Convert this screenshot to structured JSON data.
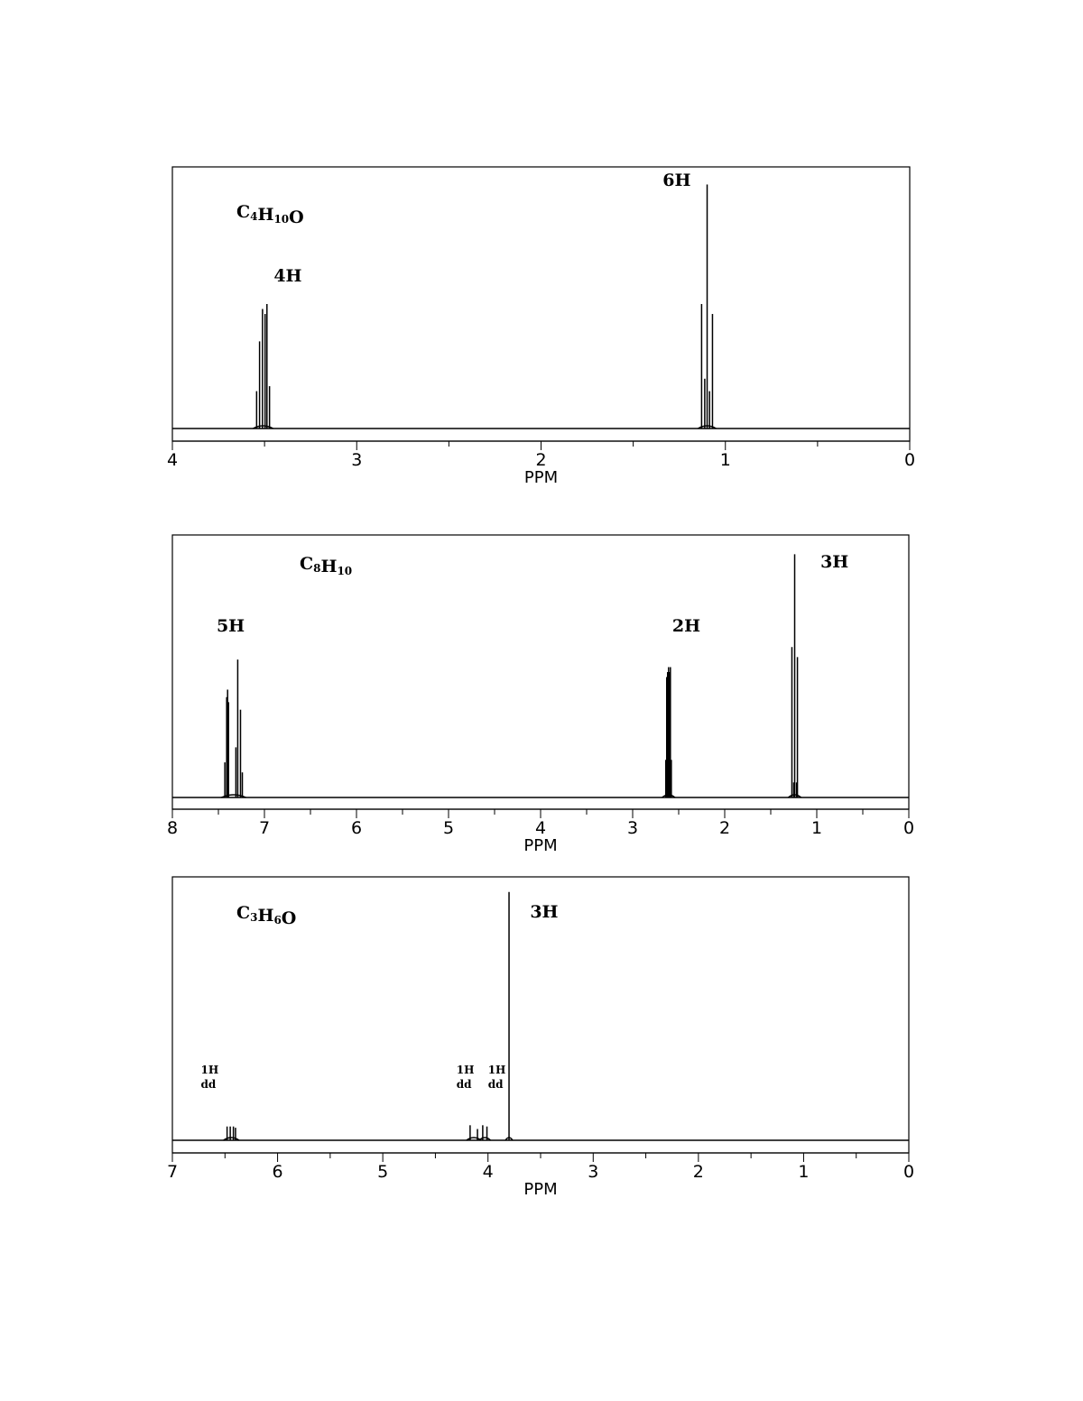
{
  "chart_data": [
    {
      "type": "line",
      "spectrum": "1H NMR",
      "formula": {
        "parts": [
          {
            "t": "C",
            "s": "4"
          },
          {
            "t": "H",
            "s": "10"
          },
          {
            "t": "O",
            "s": ""
          }
        ]
      },
      "xlabel": "PPM",
      "xlim": [
        4,
        0
      ],
      "ticks_major": [
        4,
        3,
        2,
        1,
        0
      ],
      "tick_labels": [
        "4",
        "3",
        "2",
        "1",
        "0"
      ],
      "signals": [
        {
          "center_ppm": 3.5,
          "integration": "4H",
          "multiplicity": "quartet",
          "lines": [
            {
              "ppm": 3.543,
              "h": 0.15
            },
            {
              "ppm": 3.527,
              "h": 0.35
            },
            {
              "ppm": 3.511,
              "h": 0.48
            },
            {
              "ppm": 3.497,
              "h": 0.46
            },
            {
              "ppm": 3.487,
              "h": 0.5
            },
            {
              "ppm": 3.473,
              "h": 0.17
            }
          ]
        },
        {
          "center_ppm": 1.1,
          "integration": "6H",
          "multiplicity": "triplet",
          "lines": [
            {
              "ppm": 1.129,
              "h": 0.5
            },
            {
              "ppm": 1.112,
              "h": 0.2
            },
            {
              "ppm": 1.099,
              "h": 0.98
            },
            {
              "ppm": 1.086,
              "h": 0.15
            },
            {
              "ppm": 1.07,
              "h": 0.46
            }
          ]
        }
      ],
      "annotations": [
        {
          "text": "4H",
          "near_ppm": 3.45
        },
        {
          "text": "6H",
          "near_ppm": 1.34
        }
      ]
    },
    {
      "type": "line",
      "spectrum": "1H NMR",
      "formula": {
        "parts": [
          {
            "t": "C",
            "s": "8"
          },
          {
            "t": "H",
            "s": "10"
          }
        ]
      },
      "xlabel": "PPM",
      "xlim": [
        8,
        0
      ],
      "ticks_major": [
        8,
        7,
        6,
        5,
        4,
        3,
        2,
        1,
        0
      ],
      "tick_labels": [
        "8",
        "7",
        "6",
        "5",
        "4",
        "3",
        "2",
        "1",
        "0"
      ],
      "signals": [
        {
          "center_ppm": 7.3,
          "integration": "5H",
          "multiplicity": "multiplet",
          "lines": [
            {
              "ppm": 7.43,
              "h": 0.14
            },
            {
              "ppm": 7.41,
              "h": 0.4
            },
            {
              "ppm": 7.4,
              "h": 0.43
            },
            {
              "ppm": 7.39,
              "h": 0.38
            },
            {
              "ppm": 7.31,
              "h": 0.2
            },
            {
              "ppm": 7.29,
              "h": 0.55
            },
            {
              "ppm": 7.26,
              "h": 0.35
            },
            {
              "ppm": 7.24,
              "h": 0.1
            }
          ]
        },
        {
          "center_ppm": 2.6,
          "integration": "2H",
          "multiplicity": "quartet",
          "lines": [
            {
              "ppm": 2.64,
              "h": 0.15
            },
            {
              "ppm": 2.63,
              "h": 0.48
            },
            {
              "ppm": 2.62,
              "h": 0.5
            },
            {
              "ppm": 2.61,
              "h": 0.52
            },
            {
              "ppm": 2.6,
              "h": 0.5
            },
            {
              "ppm": 2.59,
              "h": 0.52
            },
            {
              "ppm": 2.58,
              "h": 0.15
            }
          ]
        },
        {
          "center_ppm": 1.24,
          "integration": "3H",
          "multiplicity": "triplet",
          "lines": [
            {
              "ppm": 1.27,
              "h": 0.6
            },
            {
              "ppm": 1.25,
              "h": 0.06
            },
            {
              "ppm": 1.24,
              "h": 0.97
            },
            {
              "ppm": 1.22,
              "h": 0.06
            },
            {
              "ppm": 1.21,
              "h": 0.56
            }
          ]
        }
      ],
      "annotations": [
        {
          "text": "5H",
          "near_ppm": 7.52
        },
        {
          "text": "2H",
          "near_ppm": 2.57
        },
        {
          "text": "3H",
          "near_ppm": 0.96
        }
      ]
    },
    {
      "type": "line",
      "spectrum": "1H NMR",
      "formula": {
        "parts": [
          {
            "t": "C",
            "s": "3"
          },
          {
            "t": "H",
            "s": "6"
          },
          {
            "t": "O",
            "s": ""
          }
        ]
      },
      "xlabel": "PPM",
      "xlim": [
        7,
        0
      ],
      "ticks_major": [
        7,
        6,
        5,
        4,
        3,
        2,
        1,
        0
      ],
      "tick_labels": [
        "7",
        "6",
        "5",
        "4",
        "3",
        "2",
        "1",
        "0"
      ],
      "signals": [
        {
          "center_ppm": 6.44,
          "integration": "1H",
          "multiplicity": "dd",
          "lines": [
            {
              "ppm": 6.48,
              "h": 0.055
            },
            {
              "ppm": 6.45,
              "h": 0.055
            },
            {
              "ppm": 6.42,
              "h": 0.055
            },
            {
              "ppm": 6.4,
              "h": 0.05
            }
          ]
        },
        {
          "center_ppm": 4.16,
          "integration": "1H",
          "multiplicity": "dd",
          "lines": [
            {
              "ppm": 4.17,
              "h": 0.06
            },
            {
              "ppm": 4.1,
              "h": 0.045
            }
          ]
        },
        {
          "center_ppm": 4.03,
          "integration": "1H",
          "multiplicity": "dd",
          "lines": [
            {
              "ppm": 4.05,
              "h": 0.06
            },
            {
              "ppm": 4.01,
              "h": 0.055
            }
          ]
        },
        {
          "center_ppm": 3.8,
          "integration": "3H",
          "multiplicity": "singlet",
          "lines": [
            {
              "ppm": 3.8,
              "h": 0.99
            }
          ]
        }
      ],
      "annotations": [
        {
          "text": "1H",
          "sub": "dd",
          "near_ppm": 6.73,
          "small": true
        },
        {
          "text": "1H",
          "sub": "dd",
          "near_ppm": 4.3,
          "small": true
        },
        {
          "text": "1H",
          "sub": "dd",
          "near_ppm": 4.0,
          "small": true
        },
        {
          "text": "3H",
          "near_ppm": 3.6
        }
      ]
    }
  ]
}
